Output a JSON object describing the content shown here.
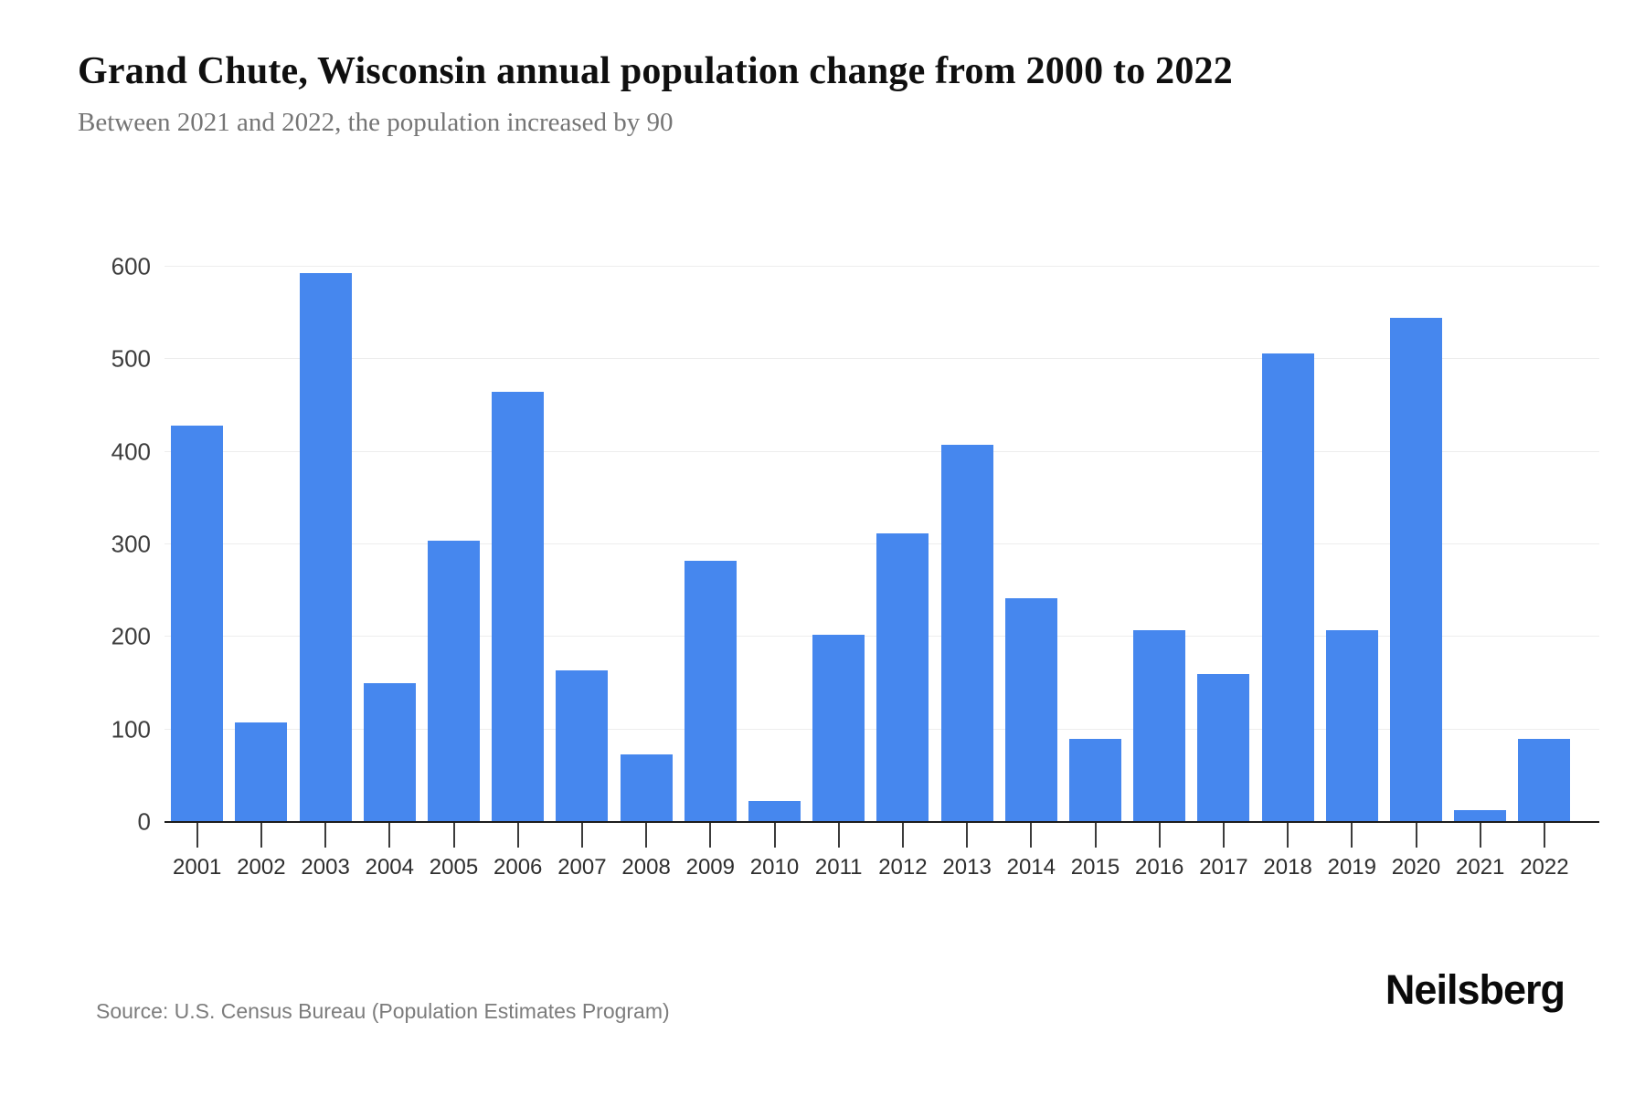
{
  "header": {
    "title": "Grand Chute, Wisconsin annual population change from 2000 to 2022",
    "subtitle": "Between 2021 and 2022, the population increased by 90"
  },
  "chart_data": {
    "type": "bar",
    "title": "Grand Chute, Wisconsin annual population change from 2000 to 2022",
    "categories": [
      "2001",
      "2002",
      "2003",
      "2004",
      "2005",
      "2006",
      "2007",
      "2008",
      "2009",
      "2010",
      "2011",
      "2012",
      "2013",
      "2014",
      "2015",
      "2016",
      "2017",
      "2018",
      "2019",
      "2020",
      "2021",
      "2022"
    ],
    "values": [
      428,
      108,
      593,
      150,
      304,
      465,
      164,
      73,
      282,
      23,
      202,
      312,
      408,
      242,
      90,
      207,
      160,
      506,
      207,
      545,
      13,
      90
    ],
    "xlabel": "",
    "ylabel": "",
    "ylim": [
      0,
      600
    ],
    "ytick_step": 100,
    "yticks": [
      "0",
      "100",
      "200",
      "300",
      "400",
      "500",
      "600"
    ],
    "grid": "horizontal",
    "legend": "none",
    "bar_color": "#4687ee"
  },
  "footer": {
    "source": "Source: U.S. Census Bureau (Population Estimates Program)",
    "brand": "Neilsberg"
  }
}
